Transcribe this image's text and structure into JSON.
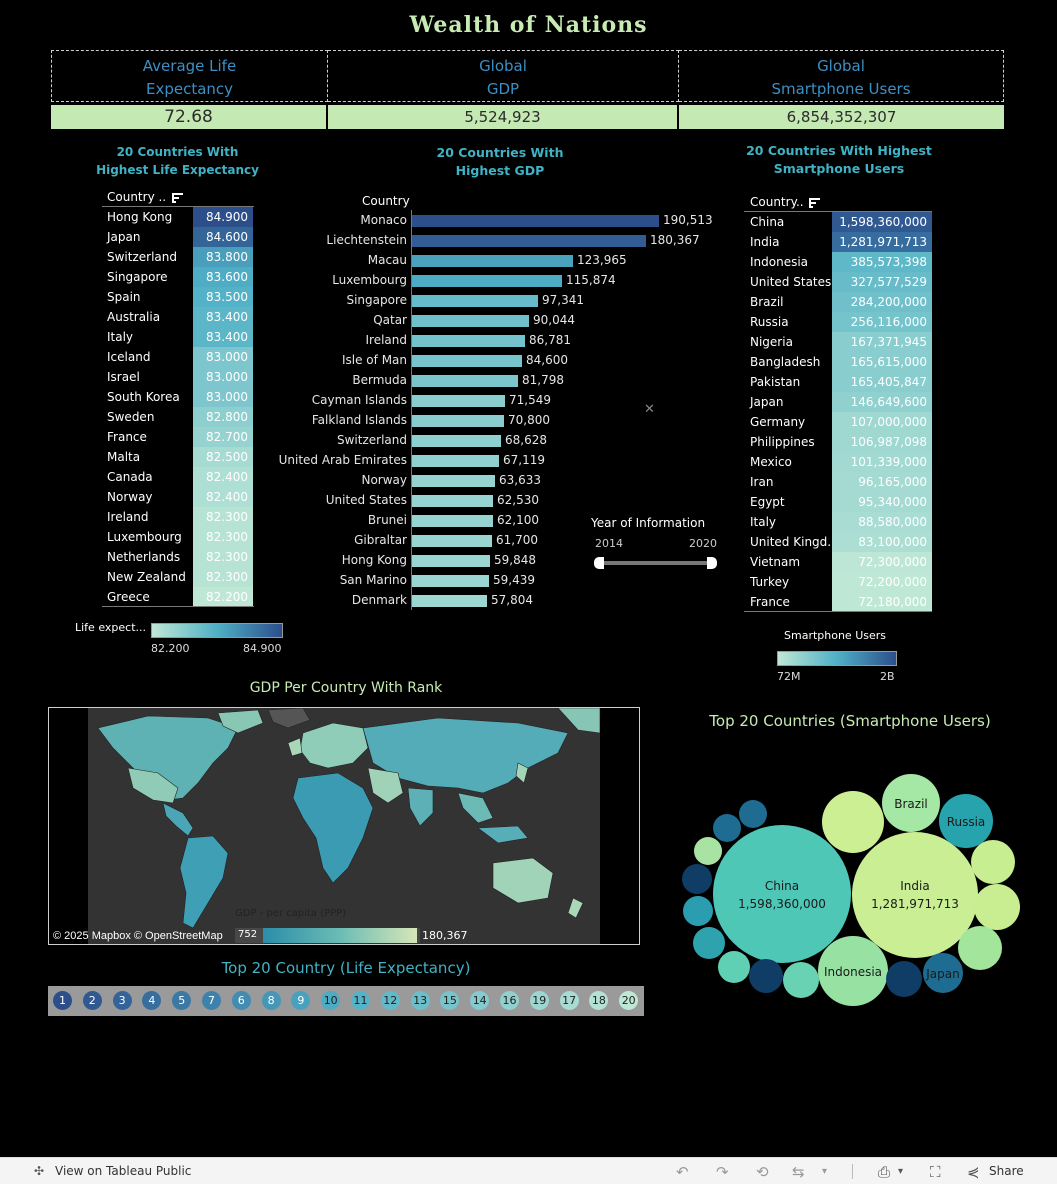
{
  "title": "Wealth  of  Nations",
  "kpis": {
    "life_title_1": "Average Life",
    "life_title_2": "Expectancy",
    "gdp_title_1": "Global",
    "gdp_title_2": "GDP",
    "phone_title_1": "Global",
    "phone_title_2": "Smartphone Users",
    "life_value": "72.68",
    "gdp_value": "5,524,923",
    "phone_value": "6,854,352,307"
  },
  "colors": {
    "accent_green": "#c5e9b3",
    "title_teal": "#3fb3c5",
    "kpi_blue": "#3d8fc4",
    "scale_low": "#bfe7d6",
    "scale_mid": "#4fb0c6",
    "scale_high": "#2c4f8c"
  },
  "life_table": {
    "title_1": "20 Countries With",
    "title_2": "Highest Life Expectancy",
    "header": "Country ..",
    "rows": [
      {
        "country": "Hong Kong",
        "value": "84.900",
        "v": 84.9
      },
      {
        "country": "Japan",
        "value": "84.600",
        "v": 84.6
      },
      {
        "country": "Switzerland",
        "value": "83.800",
        "v": 83.8
      },
      {
        "country": "Singapore",
        "value": "83.600",
        "v": 83.6
      },
      {
        "country": "Spain",
        "value": "83.500",
        "v": 83.5
      },
      {
        "country": "Australia",
        "value": "83.400",
        "v": 83.4
      },
      {
        "country": "Italy",
        "value": "83.400",
        "v": 83.4
      },
      {
        "country": "Iceland",
        "value": "83.000",
        "v": 83.0
      },
      {
        "country": "Israel",
        "value": "83.000",
        "v": 83.0
      },
      {
        "country": "South Korea",
        "value": "83.000",
        "v": 83.0
      },
      {
        "country": "Sweden",
        "value": "82.800",
        "v": 82.8
      },
      {
        "country": "France",
        "value": "82.700",
        "v": 82.7
      },
      {
        "country": "Malta",
        "value": "82.500",
        "v": 82.5
      },
      {
        "country": "Canada",
        "value": "82.400",
        "v": 82.4
      },
      {
        "country": "Norway",
        "value": "82.400",
        "v": 82.4
      },
      {
        "country": "Ireland",
        "value": "82.300",
        "v": 82.3
      },
      {
        "country": "Luxembourg",
        "value": "82.300",
        "v": 82.3
      },
      {
        "country": "Netherlands",
        "value": "82.300",
        "v": 82.3
      },
      {
        "country": "New Zealand",
        "value": "82.300",
        "v": 82.3
      },
      {
        "country": "Greece",
        "value": "82.200",
        "v": 82.2
      }
    ],
    "legend_label": "Life expect...",
    "legend_min": "82.200",
    "legend_max": "84.900"
  },
  "chart_data": {
    "type": "bar",
    "title": "20 Countries With Highest GDP",
    "ylabel": "Country",
    "categories": [
      "Monaco",
      "Liechtenstein",
      "Macau",
      "Luxembourg",
      "Singapore",
      "Qatar",
      "Ireland",
      "Isle of Man",
      "Bermuda",
      "Cayman Islands",
      "Falkland Islands",
      "Switzerland",
      "United Arab Emirates",
      "Norway",
      "United States",
      "Brunei",
      "Gibraltar",
      "Hong Kong",
      "San Marino",
      "Denmark"
    ],
    "values": [
      190513,
      180367,
      123965,
      115874,
      97341,
      90044,
      86781,
      84600,
      81798,
      71549,
      70800,
      68628,
      67119,
      63633,
      62530,
      62100,
      61700,
      59848,
      59439,
      57804
    ],
    "labels": [
      "190,513",
      "180,367",
      "123,965",
      "115,874",
      "97,341",
      "90,044",
      "86,781",
      "84,600",
      "81,798",
      "71,549",
      "70,800",
      "68,628",
      "67,119",
      "63,633",
      "62,530",
      "62,100",
      "61,700",
      "59,848",
      "59,439",
      "57,804"
    ],
    "xlim": [
      0,
      190513
    ]
  },
  "gdp_chart": {
    "title_1": "20 Countries With",
    "title_2": "Highest GDP",
    "axis_header": "Country"
  },
  "year_filter": {
    "label": "Year of Information",
    "min": "2014",
    "max": "2020"
  },
  "phone_table": {
    "title_1": "20 Countries With Highest",
    "title_2": "Smartphone Users",
    "header": "Country..",
    "rows": [
      {
        "country": "China",
        "value": "1,598,360,000",
        "v": 1598360000
      },
      {
        "country": "India",
        "value": "1,281,971,713",
        "v": 1281971713
      },
      {
        "country": "Indonesia",
        "value": "385,573,398",
        "v": 385573398
      },
      {
        "country": "United States",
        "value": "327,577,529",
        "v": 327577529
      },
      {
        "country": "Brazil",
        "value": "284,200,000",
        "v": 284200000
      },
      {
        "country": "Russia",
        "value": "256,116,000",
        "v": 256116000
      },
      {
        "country": "Nigeria",
        "value": "167,371,945",
        "v": 167371945
      },
      {
        "country": "Bangladesh",
        "value": "165,615,000",
        "v": 165615000
      },
      {
        "country": "Pakistan",
        "value": "165,405,847",
        "v": 165405847
      },
      {
        "country": "Japan",
        "value": "146,649,600",
        "v": 146649600
      },
      {
        "country": "Germany",
        "value": "107,000,000",
        "v": 107000000
      },
      {
        "country": "Philippines",
        "value": "106,987,098",
        "v": 106987098
      },
      {
        "country": "Mexico",
        "value": "101,339,000",
        "v": 101339000
      },
      {
        "country": "Iran",
        "value": "96,165,000",
        "v": 96165000
      },
      {
        "country": "Egypt",
        "value": "95,340,000",
        "v": 95340000
      },
      {
        "country": "Italy",
        "value": "88,580,000",
        "v": 88580000
      },
      {
        "country": "United Kingd..",
        "value": "83,100,000",
        "v": 83100000
      },
      {
        "country": "Vietnam",
        "value": "72,300,000",
        "v": 72300000
      },
      {
        "country": "Turkey",
        "value": "72,200,000",
        "v": 72200000
      },
      {
        "country": "France",
        "value": "72,180,000",
        "v": 72180000
      }
    ],
    "legend_label": "Smartphone Users",
    "legend_min": "72M",
    "legend_max": "2B"
  },
  "map": {
    "title": "GDP Per Country With Rank",
    "attribution": "© 2025 Mapbox  © OpenStreetMap",
    "legend_label": "GDP - per capita (PPP)",
    "legend_min": "752",
    "legend_max": "180,367"
  },
  "rank_strip": {
    "title": "Top 20 Country (Life Expectancy)",
    "ranks": [
      "1",
      "2",
      "3",
      "4",
      "5",
      "7",
      "6",
      "8",
      "9",
      "10",
      "11",
      "12",
      "13",
      "15",
      "14",
      "16",
      "19",
      "17",
      "18",
      "20"
    ]
  },
  "bubbles": {
    "title": "Top 20 Countries (Smartphone Users)",
    "china_name": "China",
    "china_value": "1,598,360,000",
    "india_name": "India",
    "india_value": "1,281,971,713",
    "indonesia": "Indonesia",
    "brazil": "Brazil",
    "russia": "Russia",
    "japan": "Japan"
  },
  "footer": {
    "view_label": "View on Tableau Public",
    "share_label": "Share"
  }
}
